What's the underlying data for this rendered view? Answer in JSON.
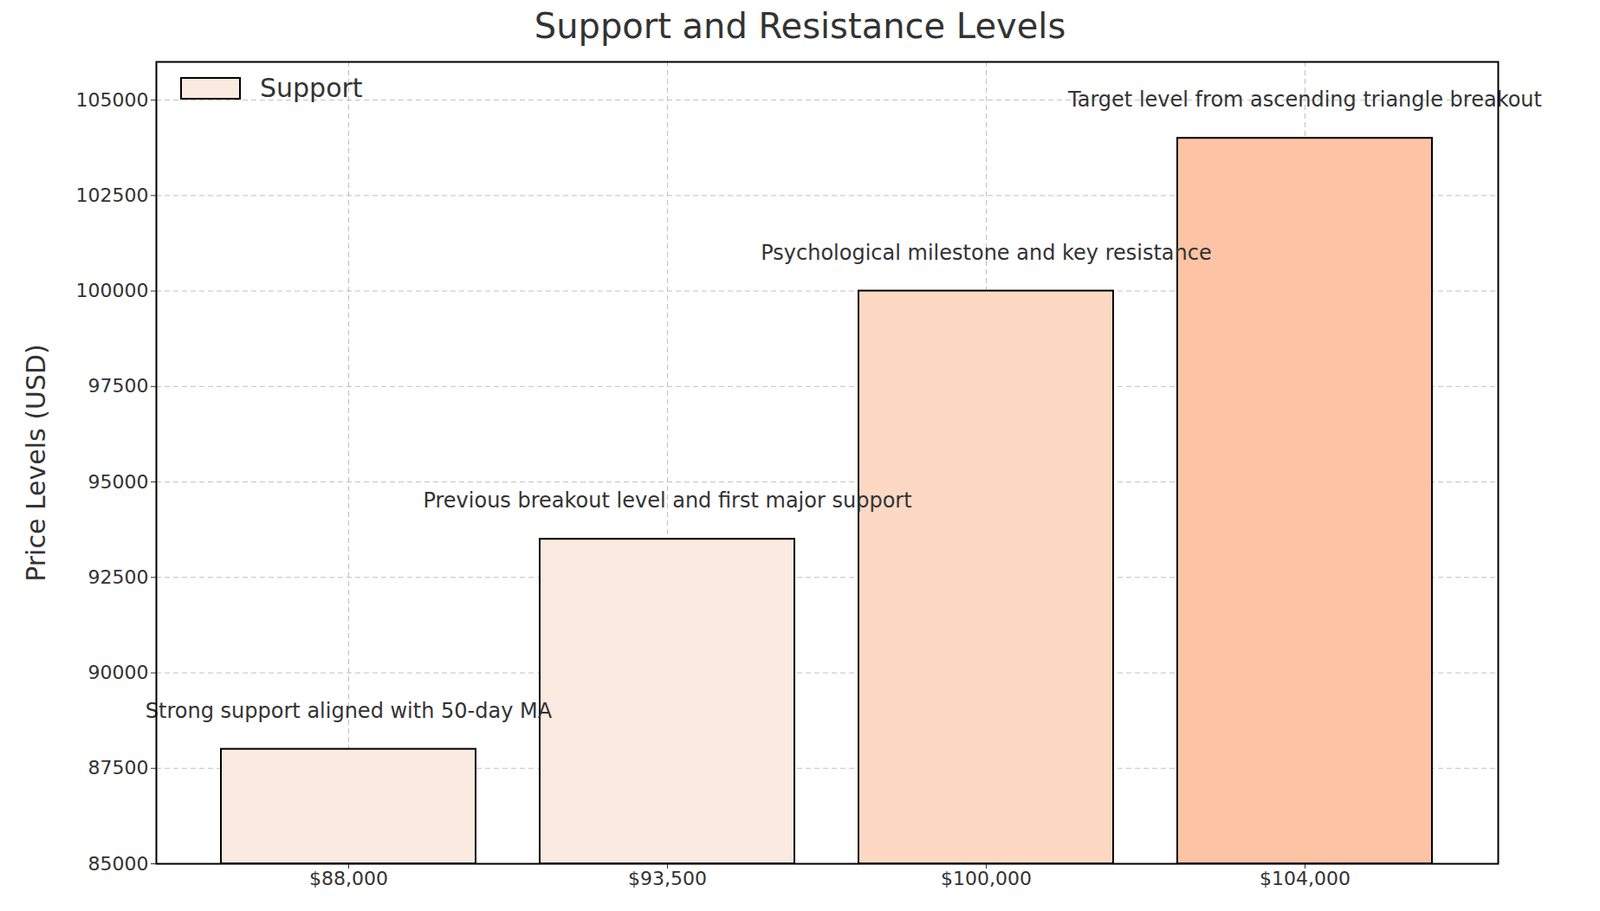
{
  "chart_data": {
    "type": "bar",
    "title": "Support and Resistance Levels",
    "y_label": "Price Levels (USD)",
    "categories": [
      "$88,000",
      "$93,500",
      "$100,000",
      "$104,000"
    ],
    "series": [
      {
        "name": "Support",
        "values": [
          88000,
          93500,
          100000,
          104000
        ]
      }
    ],
    "colors": [
      "#fbeadf",
      "#fbeadf",
      "#fdd9c4",
      "#fcc3a5"
    ],
    "annotations": [
      "Strong support aligned with 50-day MA",
      "Previous breakout level and first major support",
      "Psychological milestone and key resistance",
      "Target level from ascending triangle breakout"
    ],
    "ylim": [
      85000,
      106000
    ],
    "yticks": [
      85000,
      87500,
      90000,
      92500,
      95000,
      97500,
      100000,
      102500,
      105000
    ],
    "grid": true,
    "legend": "upper left"
  }
}
